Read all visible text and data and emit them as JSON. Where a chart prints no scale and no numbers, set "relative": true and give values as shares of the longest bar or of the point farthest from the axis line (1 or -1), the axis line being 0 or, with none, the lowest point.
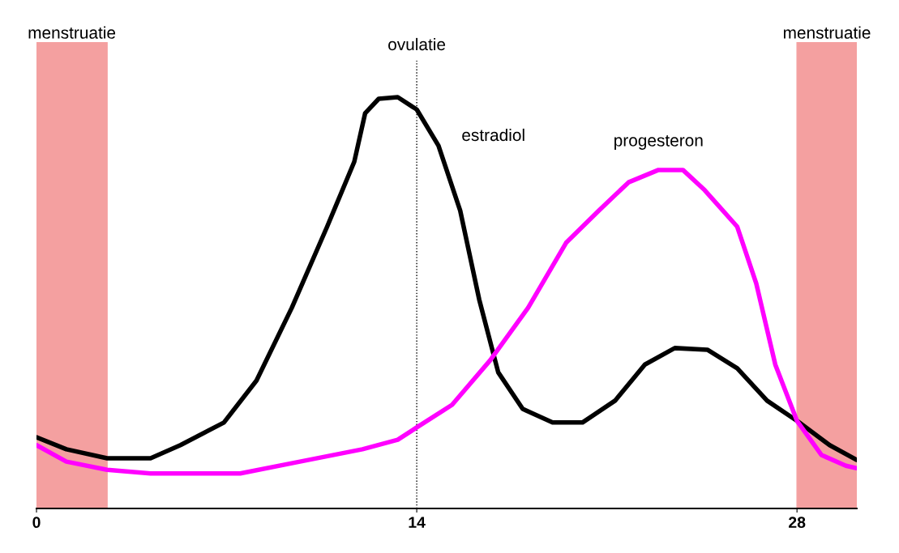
{
  "chart_data": {
    "type": "line",
    "relative": true,
    "xlim": [
      0,
      30.2
    ],
    "xticks": [
      0,
      14,
      28
    ],
    "grid": false,
    "legend": false,
    "marker": "none",
    "line_style": "solid",
    "series": [
      {
        "name": "estradiol",
        "color": "#000000",
        "x": [
          0,
          1.1,
          2.6,
          4.2,
          5.3,
          6.9,
          8.1,
          9.4,
          10.7,
          11.7,
          12.1,
          12.6,
          13.3,
          14,
          14.8,
          15.6,
          16.3,
          17.0,
          17.9,
          19.0,
          20.1,
          21.3,
          22.4,
          23.5,
          24.7,
          25.8,
          26.9,
          28,
          29.2,
          30.2
        ],
        "values": [
          0.173,
          0.144,
          0.122,
          0.122,
          0.154,
          0.209,
          0.311,
          0.488,
          0.685,
          0.843,
          0.961,
          0.996,
          1.0,
          0.97,
          0.882,
          0.724,
          0.508,
          0.331,
          0.242,
          0.209,
          0.209,
          0.262,
          0.35,
          0.39,
          0.386,
          0.341,
          0.262,
          0.213,
          0.154,
          0.118
        ]
      },
      {
        "name": "progesteron",
        "color": "#ff00ff",
        "x": [
          0,
          1.1,
          2.6,
          4.2,
          7.5,
          9.7,
          12.0,
          13.3,
          14,
          15.3,
          16.7,
          18.1,
          19.5,
          20.7,
          21.8,
          22.9,
          23.8,
          24.6,
          25.8,
          26.5,
          27.2,
          28,
          28.9,
          29.8,
          30.2
        ],
        "values": [
          0.154,
          0.114,
          0.094,
          0.085,
          0.085,
          0.114,
          0.144,
          0.167,
          0.197,
          0.252,
          0.36,
          0.488,
          0.646,
          0.724,
          0.793,
          0.823,
          0.823,
          0.774,
          0.685,
          0.547,
          0.35,
          0.213,
          0.13,
          0.104,
          0.098
        ]
      }
    ],
    "bands": [
      {
        "axis": "x",
        "from": 0,
        "to": 2.6,
        "label": "menstruatie",
        "color": "#f4a0a0"
      },
      {
        "axis": "x",
        "from": 28,
        "to": 30.2,
        "label": "menstruatie",
        "color": "#f4a0a0"
      }
    ],
    "ref_lines": [
      {
        "axis": "x",
        "value": 14,
        "label": "ovulatie",
        "line_style": "dotted",
        "color": "#000000"
      }
    ]
  }
}
